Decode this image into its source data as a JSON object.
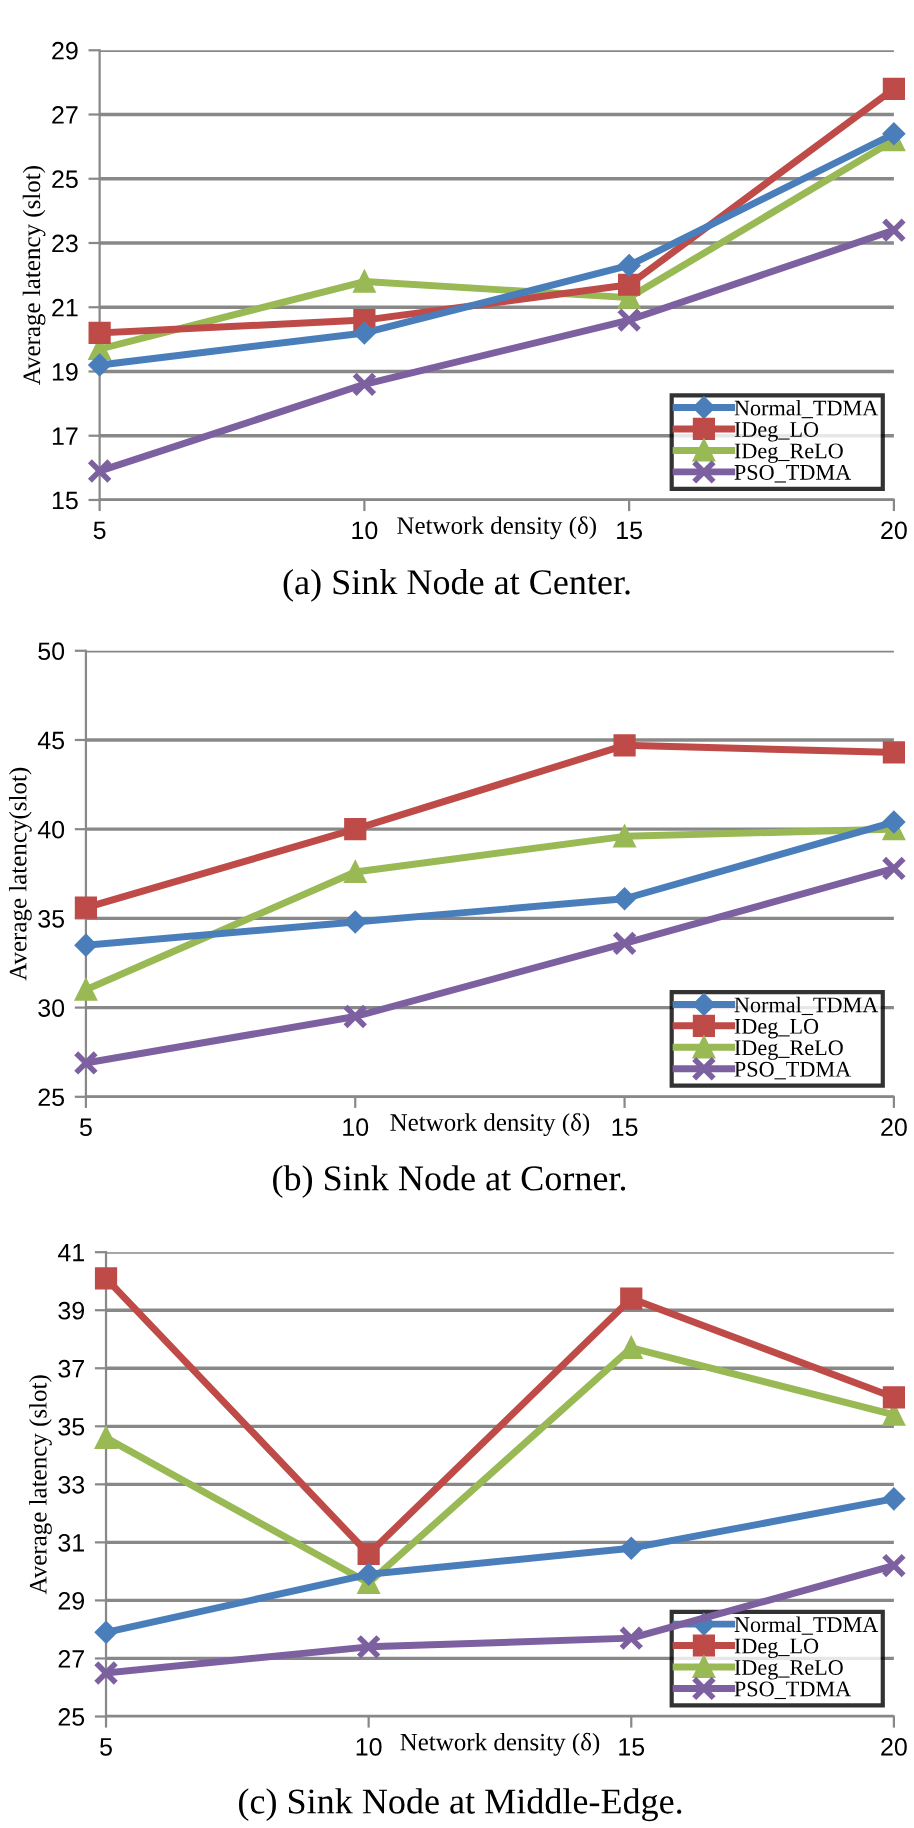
{
  "chart_data": [
    {
      "type": "line",
      "title": "(a) Sink Node at Center.",
      "xlabel": "Network density (δ)",
      "ylabel": "Average latency (slot)",
      "x": [
        5,
        10,
        15,
        20
      ],
      "xlim": [
        5,
        20
      ],
      "xticks": [
        5,
        10,
        15,
        20
      ],
      "ylim": [
        15,
        29
      ],
      "yticks": [
        15,
        17,
        19,
        21,
        23,
        25,
        27,
        29
      ],
      "grid": "y",
      "legend": "bottom right",
      "line_style": "solid",
      "series": [
        {
          "name": "Normal_TDMA",
          "color": "#4a7ebb",
          "marker": "diamond",
          "values": [
            19.2,
            20.2,
            22.3,
            26.4
          ]
        },
        {
          "name": "IDeg_LO",
          "color": "#be4b48",
          "marker": "square",
          "values": [
            20.2,
            20.6,
            21.7,
            27.8
          ]
        },
        {
          "name": "IDeg_ReLO",
          "color": "#98b954",
          "marker": "triangle",
          "values": [
            19.7,
            21.8,
            21.3,
            26.2
          ]
        },
        {
          "name": "PSO_TDMA",
          "color": "#7d60a0",
          "marker": "cross",
          "values": [
            15.9,
            18.6,
            20.6,
            23.4
          ]
        }
      ]
    },
    {
      "type": "line",
      "title": "(b) Sink Node at Corner.",
      "xlabel": "Network density (δ)",
      "ylabel": "Average latency(slot)",
      "x": [
        5,
        10,
        15,
        20
      ],
      "xlim": [
        5,
        20
      ],
      "xticks": [
        5,
        10,
        15,
        20
      ],
      "ylim": [
        25,
        50
      ],
      "yticks": [
        25,
        30,
        35,
        40,
        45,
        50
      ],
      "grid": "y",
      "legend": "bottom right",
      "line_style": "solid",
      "series": [
        {
          "name": "Normal_TDMA",
          "color": "#4a7ebb",
          "marker": "diamond",
          "values": [
            33.5,
            34.8,
            36.1,
            40.4
          ]
        },
        {
          "name": "IDeg_LO",
          "color": "#be4b48",
          "marker": "square",
          "values": [
            35.6,
            40.0,
            44.7,
            44.3
          ]
        },
        {
          "name": "IDeg_ReLO",
          "color": "#98b954",
          "marker": "triangle",
          "values": [
            31.0,
            37.6,
            39.6,
            40.0
          ]
        },
        {
          "name": "PSO_TDMA",
          "color": "#7d60a0",
          "marker": "cross",
          "values": [
            26.9,
            29.5,
            33.6,
            37.8
          ]
        }
      ]
    },
    {
      "type": "line",
      "title": "(c) Sink Node at Middle-Edge.",
      "xlabel": "Network density (δ)",
      "ylabel": "Average latency (slot)",
      "x": [
        5,
        10,
        15,
        20
      ],
      "xlim": [
        5,
        20
      ],
      "xticks": [
        5,
        10,
        15,
        20
      ],
      "ylim": [
        25,
        41
      ],
      "yticks": [
        25,
        27,
        29,
        31,
        33,
        35,
        37,
        39,
        41
      ],
      "grid": "y",
      "legend": "bottom right",
      "line_style": "solid",
      "series": [
        {
          "name": "Normal_TDMA",
          "color": "#4a7ebb",
          "marker": "diamond",
          "values": [
            27.9,
            29.9,
            30.8,
            32.5
          ]
        },
        {
          "name": "IDeg_LO",
          "color": "#be4b48",
          "marker": "square",
          "values": [
            40.1,
            30.6,
            39.4,
            36.0
          ]
        },
        {
          "name": "IDeg_ReLO",
          "color": "#98b954",
          "marker": "triangle",
          "values": [
            34.6,
            29.6,
            37.7,
            35.4
          ]
        },
        {
          "name": "PSO_TDMA",
          "color": "#7d60a0",
          "marker": "cross",
          "values": [
            26.5,
            27.4,
            27.7,
            30.2
          ]
        }
      ]
    }
  ]
}
